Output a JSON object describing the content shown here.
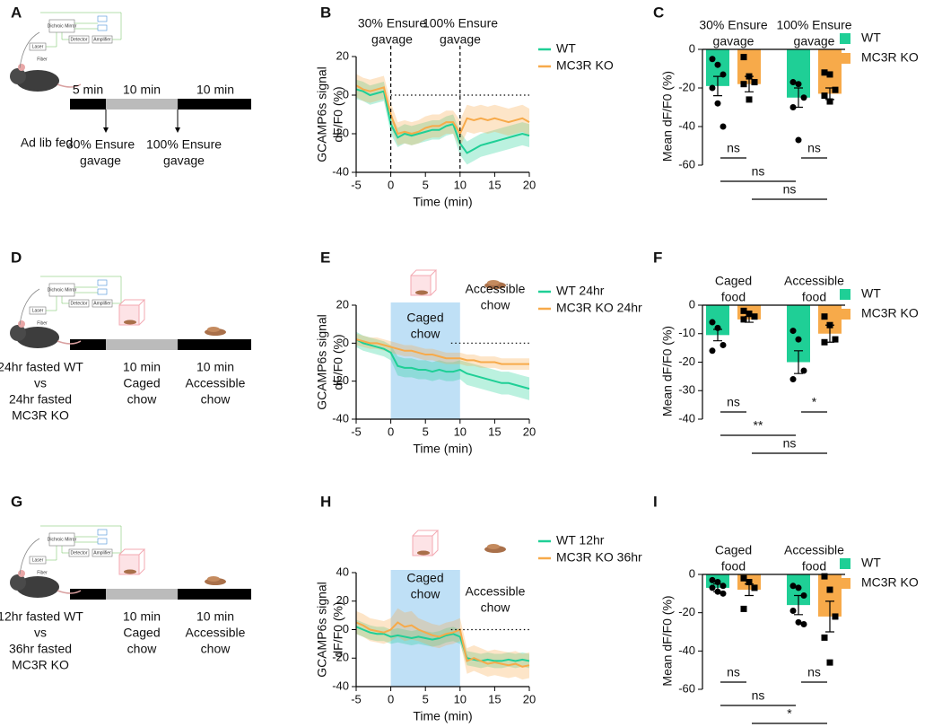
{
  "chart_data": [
    {
      "panel": "B",
      "type": "line",
      "xlabel": "Time (min)",
      "ylabel": [
        "GCAMP6s signal",
        "dF/F0 (%)"
      ],
      "annotations": [
        [
          "30% Ensure",
          "gavage"
        ],
        [
          "100% Ensure",
          "gavage"
        ]
      ],
      "vlines": [
        0,
        10
      ],
      "refline": 0,
      "xlim": [
        -5,
        20
      ],
      "xticks": [
        -5,
        0,
        5,
        10,
        15,
        20
      ],
      "ylim": [
        -40,
        20
      ],
      "yticks": [
        -40,
        -20,
        0,
        20
      ],
      "x": [
        -5,
        -4,
        -3,
        -2,
        -1,
        0,
        1,
        2,
        3,
        4,
        5,
        6,
        7,
        8,
        9,
        10,
        11,
        12,
        13,
        14,
        15,
        16,
        17,
        18,
        19,
        20
      ],
      "series": [
        {
          "name": "WT",
          "color": "#1fcf96",
          "values": [
            3,
            2,
            0,
            1,
            2,
            -15,
            -22,
            -20,
            -21,
            -20,
            -19,
            -18,
            -18,
            -16,
            -15,
            -25,
            -30,
            -28,
            -26,
            -25,
            -24,
            -23,
            -22,
            -21,
            -20,
            -21
          ],
          "errors": [
            5,
            5,
            5,
            5,
            5,
            5,
            5,
            5,
            5,
            5,
            5,
            5,
            5,
            5,
            5,
            6,
            6,
            6,
            6,
            6,
            6,
            6,
            6,
            6,
            6,
            6
          ]
        },
        {
          "name": "MC3R KO",
          "color": "#f7aa4a",
          "values": [
            5,
            3,
            2,
            3,
            4,
            -10,
            -20,
            -19,
            -20,
            -19,
            -17,
            -16,
            -16,
            -14,
            -14,
            -20,
            -12,
            -13,
            -12,
            -13,
            -12,
            -13,
            -14,
            -13,
            -12,
            -14
          ],
          "errors": [
            6,
            6,
            6,
            6,
            6,
            6,
            6,
            6,
            6,
            6,
            6,
            6,
            6,
            6,
            6,
            7,
            7,
            7,
            7,
            7,
            7,
            7,
            7,
            7,
            7,
            7
          ]
        }
      ]
    },
    {
      "panel": "C",
      "type": "bar",
      "ylabel": "Mean dF/F0 (%)",
      "categories": [
        [
          "30% Ensure",
          "gavage"
        ],
        [
          "100% Ensure",
          "gavage"
        ]
      ],
      "ylim": [
        -60,
        0
      ],
      "yticks": [
        -60,
        -40,
        -20,
        0
      ],
      "comparisons": [
        "ns",
        "ns",
        "ns",
        "ns"
      ],
      "series": [
        {
          "name": "WT",
          "color": "#1fcf96",
          "marker": "circle",
          "values": [
            -19,
            -25
          ],
          "errors": [
            5,
            5
          ],
          "points": [
            [
              -5,
              -8,
              -13,
              -20,
              -28,
              -40
            ],
            [
              -17,
              -18,
              -25,
              -30,
              -47
            ]
          ]
        },
        {
          "name": "MC3R KO",
          "color": "#f7aa4a",
          "marker": "square",
          "values": [
            -18,
            -23
          ],
          "errors": [
            4,
            3
          ],
          "points": [
            [
              -4,
              -14,
              -17,
              -18,
              -26
            ],
            [
              -12,
              -13,
              -21,
              -24,
              -27
            ]
          ]
        }
      ]
    },
    {
      "panel": "E",
      "type": "line",
      "xlabel": "Time (min)",
      "ylabel": [
        "GCAMP6s signal",
        "dF/F0 (%)"
      ],
      "annotations": [
        [
          "Caged",
          "chow"
        ],
        [
          "Accessible",
          "chow"
        ]
      ],
      "shade": [
        0,
        10
      ],
      "refline": 0,
      "xlim": [
        -5,
        20
      ],
      "xticks": [
        -5,
        0,
        5,
        10,
        15,
        20
      ],
      "ylim": [
        -40,
        20
      ],
      "yticks": [
        -40,
        -20,
        0,
        20
      ],
      "x": [
        -5,
        -4,
        -3,
        -2,
        -1,
        0,
        1,
        2,
        3,
        4,
        5,
        6,
        7,
        8,
        9,
        10,
        11,
        12,
        13,
        14,
        15,
        16,
        17,
        18,
        19,
        20
      ],
      "series": [
        {
          "name": "WT 24hr",
          "color": "#1fcf96",
          "values": [
            2,
            0,
            -1,
            -2,
            -3,
            -5,
            -12,
            -13,
            -13,
            -14,
            -14,
            -15,
            -14,
            -15,
            -15,
            -14,
            -16,
            -17,
            -18,
            -19,
            -20,
            -21,
            -21,
            -22,
            -23,
            -24
          ],
          "errors": [
            4,
            4,
            4,
            4,
            4,
            4,
            5,
            5,
            5,
            5,
            5,
            5,
            5,
            5,
            5,
            5,
            6,
            6,
            6,
            6,
            6,
            6,
            6,
            6,
            6,
            6
          ]
        },
        {
          "name": "MC3R KO 24hr",
          "color": "#f7aa4a",
          "values": [
            2,
            1,
            0,
            0,
            -1,
            -2,
            -3,
            -4,
            -4,
            -5,
            -6,
            -6,
            -7,
            -8,
            -8,
            -8,
            -9,
            -9,
            -10,
            -10,
            -10,
            -11,
            -11,
            -11,
            -11,
            -11
          ],
          "errors": [
            3,
            3,
            3,
            3,
            3,
            3,
            3,
            3,
            3,
            3,
            3,
            3,
            3,
            3,
            3,
            3,
            3,
            3,
            3,
            3,
            3,
            3,
            3,
            3,
            3,
            3
          ]
        }
      ]
    },
    {
      "panel": "F",
      "type": "bar",
      "ylabel": "Mean dF/F0 (%)",
      "categories": [
        [
          "Caged",
          "food"
        ],
        [
          "Accessible",
          "food"
        ]
      ],
      "ylim": [
        -40,
        0
      ],
      "yticks": [
        -40,
        -30,
        -20,
        -10,
        0
      ],
      "comparisons": [
        "ns",
        "*",
        "**",
        "ns"
      ],
      "series": [
        {
          "name": "WT",
          "color": "#1fcf96",
          "marker": "circle",
          "values": [
            -10.5,
            -20
          ],
          "errors": [
            2,
            4
          ],
          "points": [
            [
              -6,
              -8,
              -14,
              -16
            ],
            [
              -9,
              -12,
              -23,
              -26
            ]
          ]
        },
        {
          "name": "MC3R KO",
          "color": "#f7aa4a",
          "marker": "square",
          "values": [
            -5,
            -10
          ],
          "errors": [
            1,
            3
          ],
          "points": [
            [
              -2,
              -3,
              -4,
              -5
            ],
            [
              -4,
              -7,
              -12,
              -13
            ]
          ]
        }
      ]
    },
    {
      "panel": "H",
      "type": "line",
      "xlabel": "Time (min)",
      "ylabel": [
        "GCAMP6s signal",
        "dF/F0 (%)"
      ],
      "annotations": [
        [
          "Caged",
          "chow"
        ],
        [
          "Accessible",
          "chow"
        ]
      ],
      "shade": [
        0,
        10
      ],
      "refline": 0,
      "xlim": [
        -5,
        20
      ],
      "xticks": [
        -5,
        0,
        5,
        10,
        15,
        20
      ],
      "ylim": [
        -40,
        40
      ],
      "yticks": [
        -40,
        -20,
        0,
        20,
        40
      ],
      "x": [
        -5,
        -4,
        -3,
        -2,
        -1,
        0,
        1,
        2,
        3,
        4,
        5,
        6,
        7,
        8,
        9,
        10,
        11,
        12,
        13,
        14,
        15,
        16,
        17,
        18,
        19,
        20
      ],
      "series": [
        {
          "name": "WT 12hr",
          "color": "#1fcf96",
          "values": [
            2,
            0,
            -2,
            -3,
            -3,
            -5,
            -4,
            -5,
            -6,
            -5,
            -6,
            -7,
            -6,
            -4,
            -3,
            -5,
            -20,
            -21,
            -22,
            -21,
            -22,
            -22,
            -21,
            -22,
            -21,
            -22
          ],
          "errors": [
            5,
            5,
            5,
            5,
            5,
            5,
            5,
            5,
            5,
            5,
            5,
            5,
            5,
            5,
            5,
            5,
            5,
            5,
            5,
            5,
            5,
            5,
            5,
            5,
            5,
            5
          ]
        },
        {
          "name": "MC3R KO 36hr",
          "color": "#f7aa4a",
          "values": [
            5,
            3,
            0,
            -1,
            -2,
            0,
            5,
            2,
            3,
            0,
            -2,
            -4,
            -5,
            -3,
            -2,
            0,
            -22,
            -20,
            -22,
            -24,
            -23,
            -24,
            -25,
            -24,
            -26,
            -25
          ],
          "errors": [
            8,
            8,
            8,
            8,
            8,
            8,
            10,
            10,
            10,
            8,
            8,
            8,
            8,
            8,
            8,
            8,
            9,
            9,
            9,
            9,
            9,
            9,
            9,
            9,
            9,
            9
          ]
        }
      ]
    },
    {
      "panel": "I",
      "type": "bar",
      "ylabel": "Mean dF/F0 (%)",
      "categories": [
        [
          "Caged",
          "food"
        ],
        [
          "Accessible",
          "food"
        ]
      ],
      "ylim": [
        -60,
        0
      ],
      "yticks": [
        -60,
        -40,
        -20,
        0
      ],
      "comparisons": [
        "ns",
        "ns",
        "ns",
        "*"
      ],
      "series": [
        {
          "name": "WT",
          "color": "#1fcf96",
          "marker": "circle",
          "values": [
            -7,
            -16
          ],
          "errors": [
            2,
            5
          ],
          "points": [
            [
              -3,
              -4,
              -6,
              -7,
              -9,
              -10
            ],
            [
              -6,
              -7,
              -11,
              -19,
              -25,
              -26
            ]
          ]
        },
        {
          "name": "MC3R KO",
          "color": "#f7aa4a",
          "marker": "square",
          "values": [
            -8,
            -22
          ],
          "errors": [
            3,
            8
          ],
          "points": [
            [
              -2,
              -4,
              -7,
              -18
            ],
            [
              -1,
              -8,
              -22,
              -33,
              -46
            ]
          ]
        }
      ]
    }
  ],
  "diagrams": [
    {
      "panel": "A",
      "rig_labels": [
        "Laser",
        "Dichroic Mirror",
        "Detector",
        "Amplifier",
        "Fiber"
      ],
      "condition": [
        "Ad lib fed"
      ],
      "durations": [
        "5 min",
        "10 min",
        "10 min"
      ],
      "events": [
        [
          "30% Ensure",
          "gavage"
        ],
        [
          "100% Ensure",
          "gavage"
        ]
      ]
    },
    {
      "panel": "D",
      "rig_labels": [
        "Laser",
        "Dichroic Mirror",
        "Detector",
        "Amplifier",
        "Fiber"
      ],
      "condition": [
        "24hr fasted WT",
        "vs",
        "24hr fasted",
        "MC3R KO"
      ],
      "durations": [
        "10 min",
        "10 min"
      ],
      "events": [
        [
          "Caged",
          "chow"
        ],
        [
          "Accessible",
          "chow"
        ]
      ]
    },
    {
      "panel": "G",
      "rig_labels": [
        "Laser",
        "Dichroic Mirror",
        "Detector",
        "Amplifier",
        "Fiber"
      ],
      "condition": [
        "12hr fasted WT",
        "vs",
        "36hr fasted",
        "MC3R KO"
      ],
      "durations": [
        "10 min",
        "10 min"
      ],
      "events": [
        [
          "Caged",
          "chow"
        ],
        [
          "Accessible",
          "chow"
        ]
      ]
    }
  ]
}
